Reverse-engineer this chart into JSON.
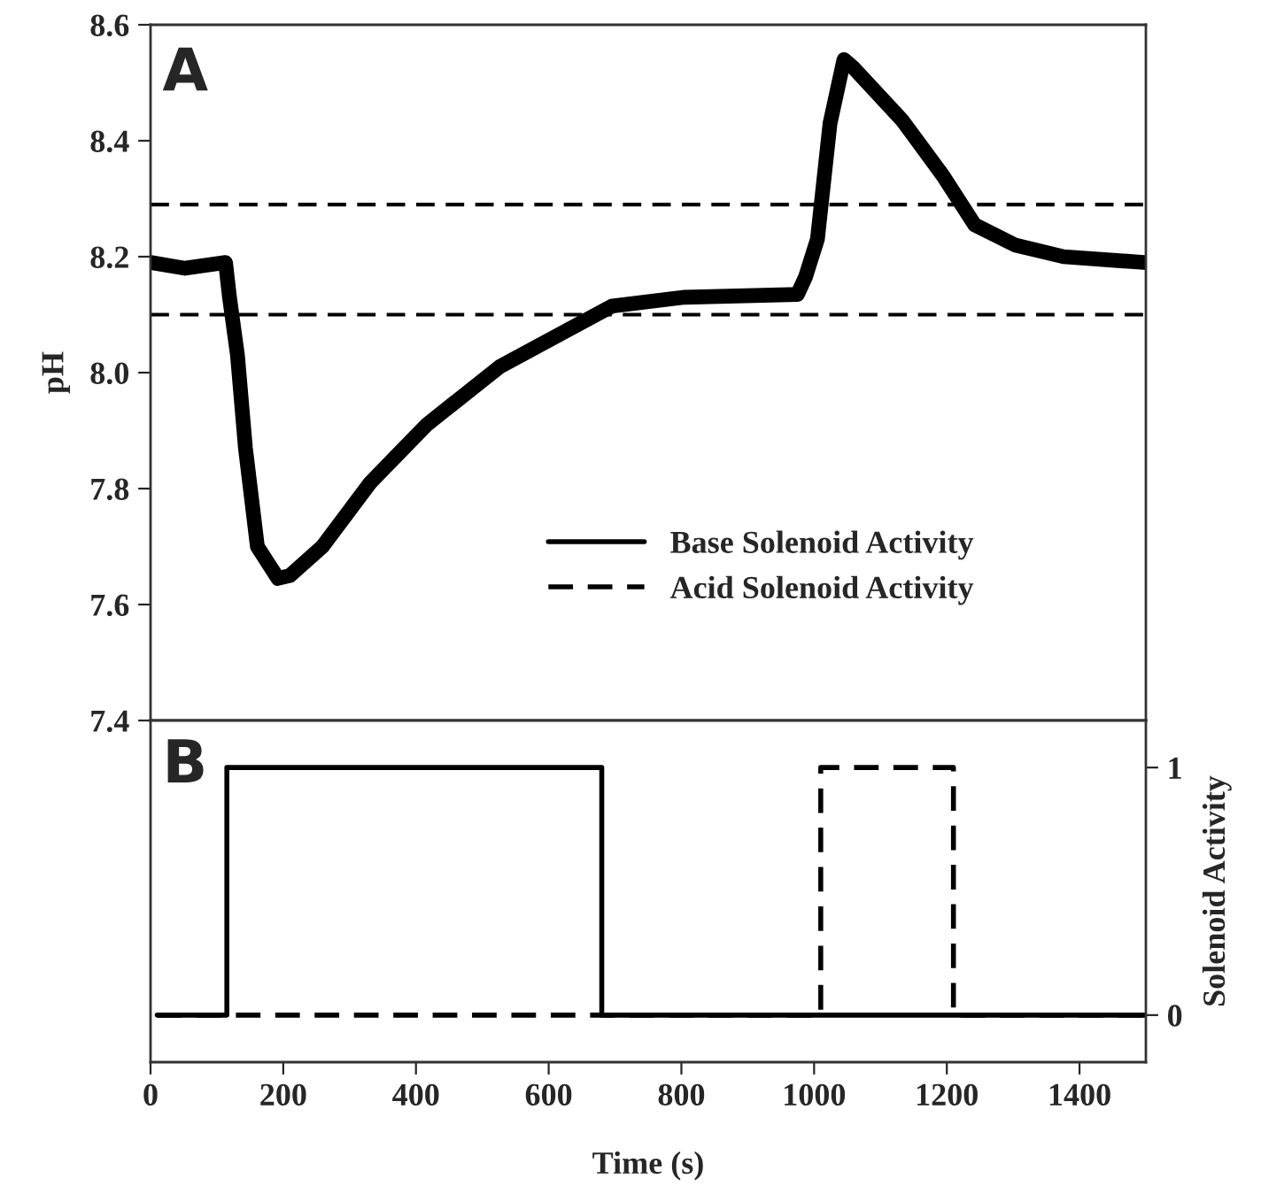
{
  "chart_data": [
    {
      "type": "line",
      "ylabel": "pH",
      "annotations": [
        "A"
      ],
      "xlim": [
        0,
        1500
      ],
      "xticks": [
        0,
        200,
        400,
        600,
        800,
        1000,
        1200,
        1400
      ],
      "ylim": [
        7.4,
        8.6
      ],
      "yticks": [
        7.4,
        7.6,
        7.8,
        {
          "value": 8,
          "label": "8.0"
        },
        8.2,
        8.4,
        8.6
      ],
      "tick_labels": "y",
      "grid": false,
      "legend": false,
      "ref_lines": [
        {
          "axis": "y",
          "value": 8.29,
          "color": "#000000",
          "line_style": "dashed"
        },
        {
          "axis": "y",
          "value": 8.1,
          "color": "#000000",
          "line_style": "dashed"
        }
      ],
      "series": [
        {
          "color": "#000000",
          "x": [
            0,
            52,
            113,
            119,
            131,
            143,
            161,
            192,
            210,
            259,
            331,
            416,
            526,
            623,
            696,
            805,
            975,
            987,
            1005,
            1024,
            1045,
            1060,
            1133,
            1194,
            1242,
            1303,
            1376,
            1497
          ],
          "values": [
            8.19,
            8.18,
            8.19,
            8.13,
            8.03,
            7.87,
            7.7,
            7.645,
            7.65,
            7.7,
            7.81,
            7.91,
            8.01,
            8.07,
            8.115,
            8.13,
            8.135,
            8.165,
            8.23,
            8.43,
            8.54,
            8.525,
            8.435,
            8.34,
            8.255,
            8.22,
            8.2,
            8.19
          ]
        }
      ]
    },
    {
      "type": "line",
      "xlabel": "Time (s)",
      "ylabel": "Solenoid Activity",
      "annotations": [
        "B"
      ],
      "xlim": [
        0,
        1500
      ],
      "xticks": [
        0,
        200,
        400,
        600,
        800,
        1000,
        1200,
        1400
      ],
      "ylim": [
        -0.19,
        1.19
      ],
      "yticks": [
        0,
        1
      ],
      "grid": false,
      "legend": "top right",
      "series": [
        {
          "name": "Base Solenoid Activity",
          "color": "#000000",
          "line_style": "solid",
          "x": [
            10,
            115,
            115,
            680,
            680,
            1500
          ],
          "values": [
            0,
            0,
            1,
            1,
            0,
            0
          ]
        },
        {
          "name": "Acid Solenoid Activity",
          "color": "#000000",
          "line_style": "dashed",
          "x": [
            10,
            1010,
            1010,
            1210,
            1210,
            1500
          ],
          "values": [
            0,
            0,
            1,
            1,
            0,
            0
          ]
        }
      ]
    }
  ]
}
